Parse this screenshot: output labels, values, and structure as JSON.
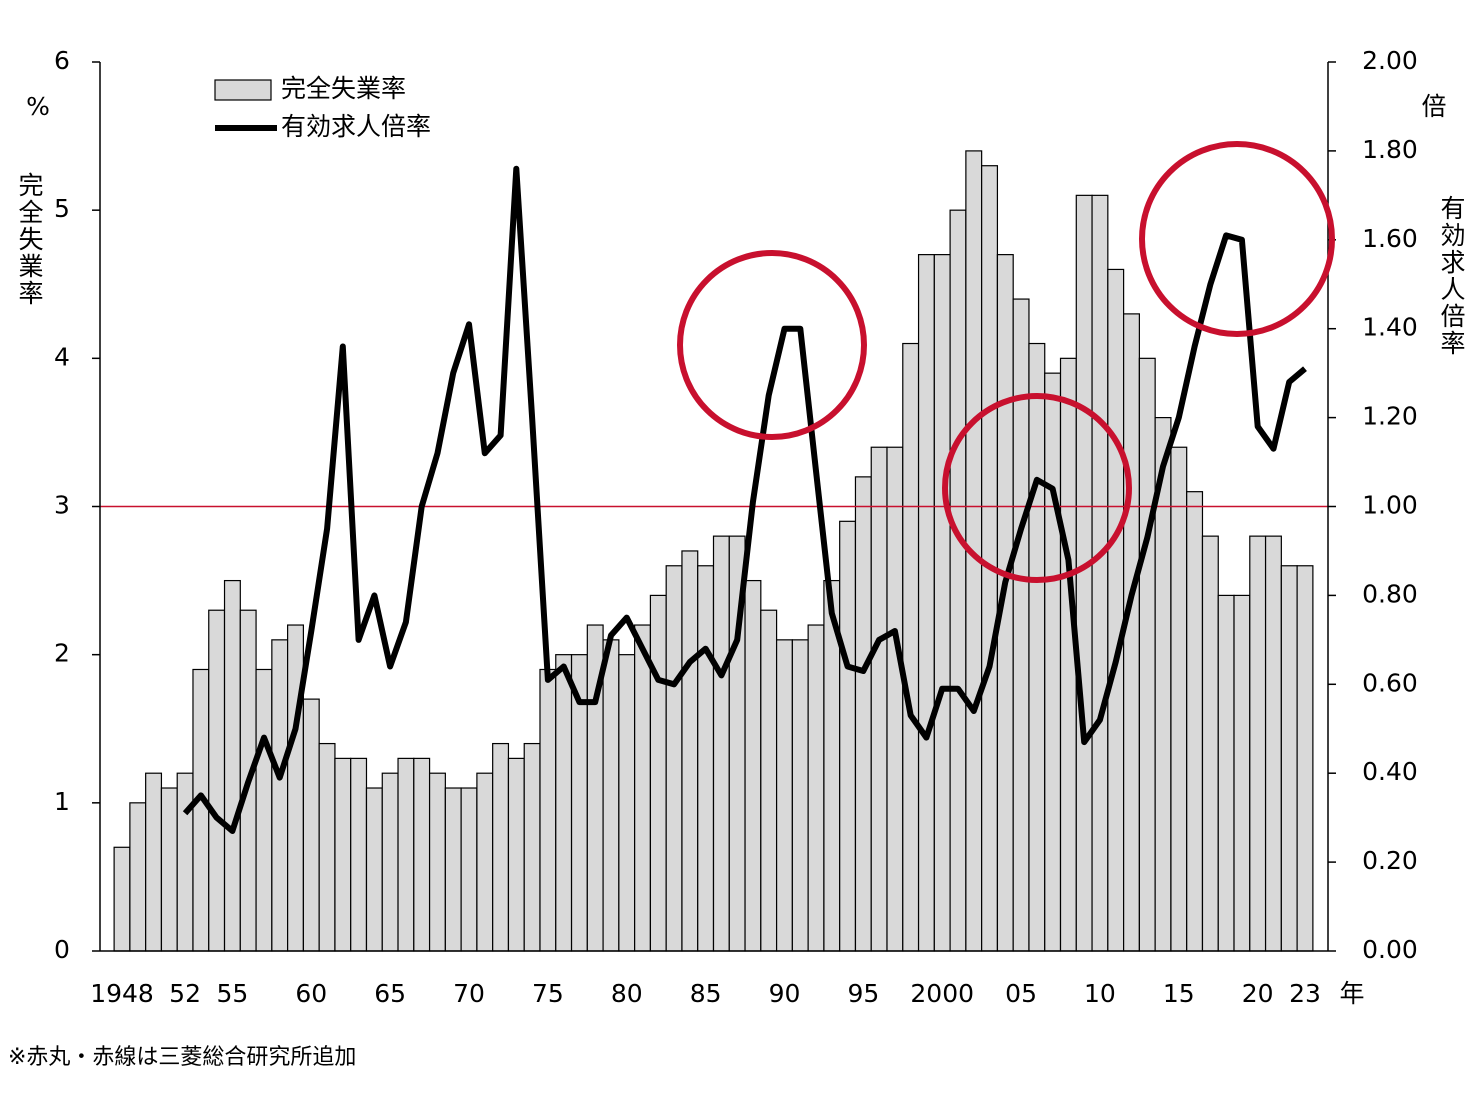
{
  "chart_data": {
    "type": "bar_line",
    "categories": [
      "1948",
      null,
      null,
      null,
      "52",
      null,
      null,
      "55",
      null,
      null,
      null,
      null,
      "60",
      null,
      null,
      null,
      null,
      "65",
      null,
      null,
      null,
      null,
      "70",
      null,
      null,
      null,
      null,
      "75",
      null,
      null,
      null,
      null,
      "80",
      null,
      null,
      null,
      null,
      "85",
      null,
      null,
      null,
      null,
      "90",
      null,
      null,
      null,
      null,
      "95",
      null,
      null,
      null,
      null,
      "2000",
      null,
      null,
      null,
      null,
      "05",
      null,
      null,
      null,
      null,
      "10",
      null,
      null,
      null,
      null,
      "15",
      null,
      null,
      null,
      null,
      "20",
      null,
      null,
      "23"
    ],
    "x_unit": "年",
    "series": [
      {
        "name": "完全失業率",
        "type": "bar",
        "color": "#d9d9d9",
        "values": [
          0.7,
          1.0,
          1.2,
          1.1,
          1.2,
          1.9,
          2.3,
          2.5,
          2.3,
          1.9,
          2.1,
          2.2,
          1.7,
          1.4,
          1.3,
          1.3,
          1.1,
          1.2,
          1.3,
          1.3,
          1.2,
          1.1,
          1.1,
          1.2,
          1.4,
          1.3,
          1.4,
          1.9,
          2.0,
          2.0,
          2.2,
          2.1,
          2.0,
          2.2,
          2.4,
          2.6,
          2.7,
          2.6,
          2.8,
          2.8,
          2.5,
          2.3,
          2.1,
          2.1,
          2.2,
          2.5,
          2.9,
          3.2,
          3.4,
          3.4,
          4.1,
          4.7,
          4.7,
          5.0,
          5.4,
          5.3,
          4.7,
          4.4,
          4.1,
          3.9,
          4.0,
          5.1,
          5.1,
          4.6,
          4.3,
          4.0,
          3.6,
          3.4,
          3.1,
          2.8,
          2.4,
          2.4,
          2.8,
          2.8,
          2.6,
          2.6
        ]
      },
      {
        "name": "有効求人倍率",
        "type": "line",
        "axis": "y2",
        "color": "#000000",
        "values": [
          null,
          null,
          null,
          null,
          0.31,
          0.35,
          0.3,
          0.27,
          0.38,
          0.48,
          0.39,
          0.5,
          0.72,
          0.95,
          1.36,
          0.7,
          0.8,
          0.64,
          0.74,
          1.0,
          1.12,
          1.3,
          1.41,
          1.12,
          1.16,
          1.76,
          1.2,
          0.61,
          0.64,
          0.56,
          0.56,
          0.71,
          0.75,
          0.68,
          0.61,
          0.6,
          0.65,
          0.68,
          0.62,
          0.7,
          1.01,
          1.25,
          1.4,
          1.4,
          1.08,
          0.76,
          0.64,
          0.63,
          0.7,
          0.72,
          0.53,
          0.48,
          0.59,
          0.59,
          0.54,
          0.64,
          0.83,
          0.95,
          1.06,
          1.04,
          0.88,
          0.47,
          0.52,
          0.65,
          0.8,
          0.93,
          1.09,
          1.2,
          1.36,
          1.5,
          1.61,
          1.6,
          1.18,
          1.13,
          1.28,
          1.31
        ]
      }
    ],
    "y_unit": "%",
    "y_label": "完全失業率",
    "y2_unit": "倍",
    "y2_label": "有効求人倍率",
    "ylim": [
      0,
      6
    ],
    "yticks": [
      0,
      1,
      2,
      3,
      4,
      5,
      6
    ],
    "y2lim": [
      0,
      2
    ],
    "y2ticks": [
      {
        "value": 0,
        "label": "0.00"
      },
      {
        "value": 0.2,
        "label": "0.20"
      },
      {
        "value": 0.4,
        "label": "0.40"
      },
      {
        "value": 0.6,
        "label": "0.60"
      },
      {
        "value": 0.8,
        "label": "0.80"
      },
      {
        "value": 1,
        "label": "1.00"
      },
      {
        "value": 1.2,
        "label": "1.20"
      },
      {
        "value": 1.4,
        "label": "1.40"
      },
      {
        "value": 1.6,
        "label": "1.60"
      },
      {
        "value": 1.8,
        "label": "1.80"
      },
      {
        "value": 2,
        "label": "2.00"
      }
    ],
    "hline": {
      "value": 3,
      "color": "#c8102e"
    },
    "legend": "top-left",
    "note": "※赤丸・赤線は三菱総合研究所追加"
  }
}
